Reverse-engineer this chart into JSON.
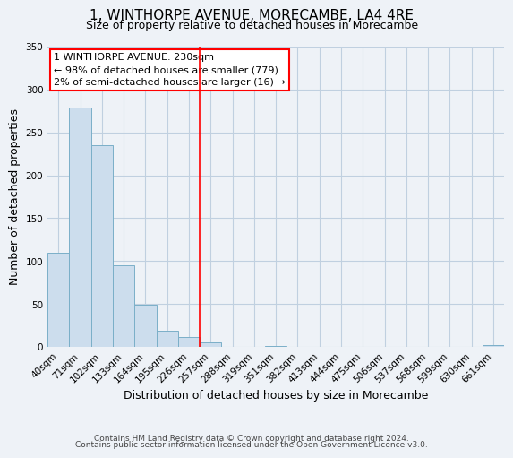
{
  "title": "1, WINTHORPE AVENUE, MORECAMBE, LA4 4RE",
  "subtitle": "Size of property relative to detached houses in Morecambe",
  "xlabel": "Distribution of detached houses by size in Morecambe",
  "ylabel": "Number of detached properties",
  "bar_labels": [
    "40sqm",
    "71sqm",
    "102sqm",
    "133sqm",
    "164sqm",
    "195sqm",
    "226sqm",
    "257sqm",
    "288sqm",
    "319sqm",
    "351sqm",
    "382sqm",
    "413sqm",
    "444sqm",
    "475sqm",
    "506sqm",
    "537sqm",
    "568sqm",
    "599sqm",
    "630sqm",
    "661sqm"
  ],
  "bar_values": [
    110,
    279,
    235,
    95,
    49,
    19,
    11,
    5,
    0,
    0,
    1,
    0,
    0,
    0,
    0,
    0,
    0,
    0,
    0,
    0,
    2
  ],
  "bar_color": "#ccdded",
  "bar_edge_color": "#7aafc8",
  "ylim": [
    0,
    350
  ],
  "yticks": [
    0,
    50,
    100,
    150,
    200,
    250,
    300,
    350
  ],
  "annotation_title": "1 WINTHORPE AVENUE: 230sqm",
  "annotation_line1": "← 98% of detached houses are smaller (779)",
  "annotation_line2": "2% of semi-detached houses are larger (16) →",
  "vline_x_index": 6,
  "footer1": "Contains HM Land Registry data © Crown copyright and database right 2024.",
  "footer2": "Contains public sector information licensed under the Open Government Licence v3.0.",
  "background_color": "#eef2f7",
  "plot_bg_color": "#eef2f7",
  "grid_color": "#c0d0e0",
  "title_fontsize": 11,
  "subtitle_fontsize": 9,
  "axis_label_fontsize": 9,
  "tick_fontsize": 7.5,
  "footer_fontsize": 6.5,
  "annotation_fontsize": 8
}
